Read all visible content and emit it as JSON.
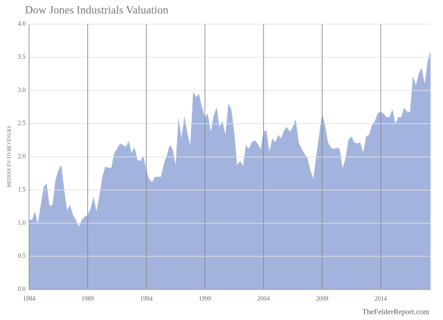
{
  "chart_data": {
    "type": "area",
    "title": "Dow Jones Industrials Valuation",
    "y_label": "MEDIAN EV-TO-REVENUES",
    "source": "TheFelderReport.com",
    "color": "#9db0dc",
    "grid": true,
    "x": [
      1984,
      1984.25,
      1984.5,
      1984.75,
      1985,
      1985.25,
      1985.5,
      1985.75,
      1986,
      1986.25,
      1986.5,
      1986.75,
      1987,
      1987.25,
      1987.5,
      1987.75,
      1988,
      1988.25,
      1988.5,
      1988.75,
      1989,
      1989.25,
      1989.5,
      1989.75,
      1990,
      1990.25,
      1990.5,
      1990.75,
      1991,
      1991.25,
      1991.5,
      1991.75,
      1992,
      1992.25,
      1992.5,
      1992.75,
      1993,
      1993.25,
      1993.5,
      1993.75,
      1994,
      1994.25,
      1994.5,
      1994.75,
      1995,
      1995.25,
      1995.5,
      1995.75,
      1996,
      1996.25,
      1996.5,
      1996.75,
      1997,
      1997.25,
      1997.5,
      1997.75,
      1998,
      1998.25,
      1998.5,
      1998.75,
      1999,
      1999.25,
      1999.5,
      1999.75,
      2000,
      2000.25,
      2000.5,
      2000.75,
      2001,
      2001.25,
      2001.5,
      2001.75,
      2002,
      2002.25,
      2002.5,
      2002.75,
      2003,
      2003.25,
      2003.5,
      2003.75,
      2004,
      2004.25,
      2004.5,
      2004.75,
      2005,
      2005.25,
      2005.5,
      2005.75,
      2006,
      2006.25,
      2006.5,
      2006.75,
      2007,
      2007.25,
      2007.5,
      2007.75,
      2008,
      2008.25,
      2008.5,
      2008.75,
      2009,
      2009.25,
      2009.5,
      2009.75,
      2010,
      2010.25,
      2010.5,
      2010.75,
      2011,
      2011.25,
      2011.5,
      2011.75,
      2012,
      2012.25,
      2012.5,
      2012.75,
      2013,
      2013.25,
      2013.5,
      2013.75,
      2014,
      2014.25,
      2014.5,
      2014.75,
      2015,
      2015.25,
      2015.5,
      2015.75,
      2016,
      2016.25,
      2016.5,
      2016.75,
      2017,
      2017.25,
      2017.5,
      2017.75,
      2018,
      2018.25
    ],
    "values": [
      1.05,
      1.05,
      1.18,
      1.0,
      1.28,
      1.55,
      1.6,
      1.26,
      1.28,
      1.65,
      1.8,
      1.88,
      1.5,
      1.2,
      1.28,
      1.12,
      1.05,
      0.95,
      1.05,
      1.1,
      1.12,
      1.22,
      1.4,
      1.18,
      1.42,
      1.7,
      1.85,
      1.84,
      1.83,
      2.05,
      2.12,
      2.2,
      2.18,
      2.15,
      2.24,
      2.06,
      2.15,
      1.95,
      1.94,
      2.02,
      1.8,
      1.67,
      1.62,
      1.7,
      1.7,
      1.7,
      1.9,
      2.02,
      2.18,
      2.12,
      1.88,
      2.6,
      2.28,
      2.62,
      2.36,
      2.18,
      2.98,
      2.9,
      2.95,
      2.75,
      2.6,
      2.65,
      2.38,
      2.62,
      2.75,
      2.45,
      2.54,
      2.33,
      2.8,
      2.72,
      2.38,
      1.88,
      1.94,
      1.86,
      2.18,
      2.12,
      2.22,
      2.25,
      2.2,
      2.12,
      2.38,
      2.4,
      2.08,
      2.28,
      2.22,
      2.33,
      2.28,
      2.4,
      2.45,
      2.38,
      2.45,
      2.57,
      2.22,
      2.12,
      2.05,
      1.98,
      1.8,
      1.67,
      2.02,
      2.33,
      2.66,
      2.48,
      2.22,
      2.14,
      2.12,
      2.14,
      2.12,
      1.83,
      1.98,
      2.26,
      2.31,
      2.22,
      2.2,
      2.22,
      2.06,
      2.31,
      2.33,
      2.48,
      2.54,
      2.66,
      2.68,
      2.65,
      2.6,
      2.6,
      2.72,
      2.5,
      2.6,
      2.6,
      2.74,
      2.68,
      2.68,
      3.22,
      3.08,
      3.26,
      3.34,
      3.1,
      3.44,
      3.6
    ],
    "xlim": [
      1984,
      2018.25
    ],
    "xticks": [
      1984,
      1989,
      1994,
      1999,
      2004,
      2009,
      2014
    ],
    "ylim": [
      0,
      4
    ],
    "yticks": [
      {
        "value": 0,
        "label": "0.0"
      },
      {
        "value": 0.5,
        "label": "0.5"
      },
      {
        "value": 1,
        "label": "1.0"
      },
      {
        "value": 1.5,
        "label": "1.5"
      },
      {
        "value": 2,
        "label": "2.0"
      },
      {
        "value": 2.5,
        "label": "2.5"
      },
      {
        "value": 3,
        "label": "3.0"
      },
      {
        "value": 3.5,
        "label": "3.5"
      },
      {
        "value": 4,
        "label": "4.0"
      }
    ]
  }
}
